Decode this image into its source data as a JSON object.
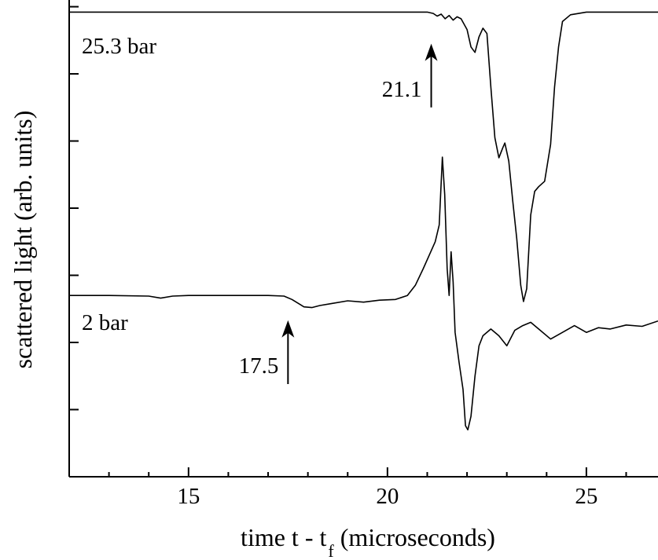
{
  "chart_data": {
    "type": "line",
    "title": "",
    "xlabel": "time t - t",
    "xlabel_subscript": "f",
    "xlabel_tail": " (microseconds)",
    "ylabel": "scattered light (arb. units)",
    "xlim": [
      12,
      26.8
    ],
    "ylim": [
      0,
      7.1
    ],
    "x_ticks": [
      15,
      20,
      25
    ],
    "y_ticks": [
      1,
      2,
      3,
      4,
      5,
      6,
      7
    ],
    "y_tick_labels": false,
    "grid": false,
    "legend": "none",
    "line_color": "#000000",
    "series": [
      {
        "label": "25.3 bar",
        "points": [
          [
            12.0,
            6.92
          ],
          [
            14.0,
            6.92
          ],
          [
            16.0,
            6.92
          ],
          [
            18.0,
            6.92
          ],
          [
            20.0,
            6.92
          ],
          [
            21.0,
            6.92
          ],
          [
            21.15,
            6.9
          ],
          [
            21.25,
            6.86
          ],
          [
            21.35,
            6.89
          ],
          [
            21.45,
            6.82
          ],
          [
            21.55,
            6.87
          ],
          [
            21.65,
            6.8
          ],
          [
            21.75,
            6.85
          ],
          [
            21.85,
            6.82
          ],
          [
            22.0,
            6.66
          ],
          [
            22.1,
            6.4
          ],
          [
            22.2,
            6.32
          ],
          [
            22.3,
            6.55
          ],
          [
            22.4,
            6.68
          ],
          [
            22.5,
            6.6
          ],
          [
            22.6,
            5.8
          ],
          [
            22.7,
            5.05
          ],
          [
            22.8,
            4.75
          ],
          [
            22.9,
            4.9
          ],
          [
            22.95,
            4.97
          ],
          [
            23.05,
            4.7
          ],
          [
            23.15,
            4.1
          ],
          [
            23.25,
            3.55
          ],
          [
            23.35,
            2.85
          ],
          [
            23.42,
            2.61
          ],
          [
            23.5,
            2.8
          ],
          [
            23.6,
            3.9
          ],
          [
            23.7,
            4.25
          ],
          [
            23.8,
            4.32
          ],
          [
            23.95,
            4.4
          ],
          [
            24.1,
            4.95
          ],
          [
            24.2,
            5.8
          ],
          [
            24.3,
            6.4
          ],
          [
            24.4,
            6.78
          ],
          [
            24.6,
            6.88
          ],
          [
            25.0,
            6.92
          ],
          [
            26.8,
            6.92
          ]
        ]
      },
      {
        "label": "2 bar",
        "points": [
          [
            12.0,
            2.7
          ],
          [
            13.0,
            2.7
          ],
          [
            14.0,
            2.69
          ],
          [
            14.3,
            2.66
          ],
          [
            14.6,
            2.69
          ],
          [
            15.0,
            2.7
          ],
          [
            16.0,
            2.7
          ],
          [
            17.0,
            2.7
          ],
          [
            17.4,
            2.69
          ],
          [
            17.6,
            2.64
          ],
          [
            17.9,
            2.53
          ],
          [
            18.1,
            2.52
          ],
          [
            18.3,
            2.55
          ],
          [
            18.6,
            2.58
          ],
          [
            19.0,
            2.62
          ],
          [
            19.4,
            2.6
          ],
          [
            19.8,
            2.63
          ],
          [
            20.2,
            2.64
          ],
          [
            20.5,
            2.7
          ],
          [
            20.7,
            2.85
          ],
          [
            20.9,
            3.1
          ],
          [
            21.05,
            3.3
          ],
          [
            21.2,
            3.5
          ],
          [
            21.3,
            3.75
          ],
          [
            21.38,
            4.76
          ],
          [
            21.44,
            4.2
          ],
          [
            21.5,
            3.1
          ],
          [
            21.55,
            2.7
          ],
          [
            21.6,
            3.35
          ],
          [
            21.65,
            2.9
          ],
          [
            21.7,
            2.15
          ],
          [
            21.8,
            1.7
          ],
          [
            21.9,
            1.3
          ],
          [
            21.96,
            0.76
          ],
          [
            22.02,
            0.7
          ],
          [
            22.1,
            0.9
          ],
          [
            22.2,
            1.5
          ],
          [
            22.3,
            1.95
          ],
          [
            22.4,
            2.1
          ],
          [
            22.6,
            2.2
          ],
          [
            22.8,
            2.1
          ],
          [
            23.0,
            1.95
          ],
          [
            23.2,
            2.18
          ],
          [
            23.4,
            2.25
          ],
          [
            23.6,
            2.3
          ],
          [
            23.8,
            2.2
          ],
          [
            24.1,
            2.05
          ],
          [
            24.4,
            2.15
          ],
          [
            24.7,
            2.25
          ],
          [
            25.0,
            2.15
          ],
          [
            25.3,
            2.22
          ],
          [
            25.6,
            2.2
          ],
          [
            26.0,
            2.26
          ],
          [
            26.4,
            2.24
          ],
          [
            26.8,
            2.32
          ]
        ]
      }
    ],
    "annotations": [
      {
        "text": "25.3 bar"
      },
      {
        "text": "21.1",
        "arrow_x": 21.1,
        "arrow_tail_y": 5.5,
        "arrow_head_y": 6.45
      },
      {
        "text": "2 bar"
      },
      {
        "text": "17.5",
        "arrow_x": 17.5,
        "arrow_tail_y": 1.38,
        "arrow_head_y": 2.33
      }
    ]
  }
}
